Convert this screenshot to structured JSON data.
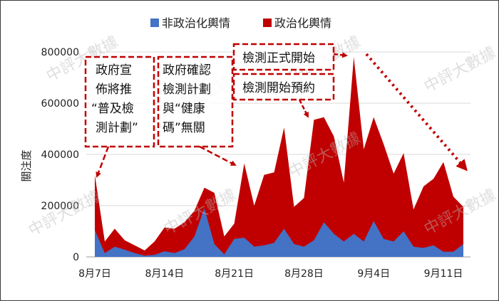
{
  "chart_data": {
    "type": "area",
    "ylabel": "關注度",
    "ylim": [
      0,
      800000
    ],
    "yticks": [
      0,
      200000,
      400000,
      600000,
      800000
    ],
    "ytick_labels": [
      "0",
      "200000",
      "400000",
      "600000",
      "800000"
    ],
    "x_start": "8月7日",
    "xticks": [
      {
        "index": 0,
        "label": "8月7日"
      },
      {
        "index": 7,
        "label": "8月14日"
      },
      {
        "index": 14,
        "label": "8月21日"
      },
      {
        "index": 21,
        "label": "8月28日"
      },
      {
        "index": 28,
        "label": "9月4日"
      },
      {
        "index": 35,
        "label": "9月11日"
      }
    ],
    "grid": true,
    "legend_position": "top",
    "series": [
      {
        "name": "非政治化輿情",
        "color": "#4472c4",
        "values": [
          105000,
          15000,
          40000,
          28000,
          15000,
          5000,
          8000,
          22000,
          15000,
          30000,
          80000,
          190000,
          50000,
          10000,
          70000,
          75000,
          40000,
          45000,
          55000,
          110000,
          50000,
          40000,
          65000,
          135000,
          90000,
          60000,
          90000,
          60000,
          140000,
          70000,
          60000,
          100000,
          40000,
          35000,
          45000,
          20000,
          20000,
          50000
        ]
      },
      {
        "name": "政治化輿情",
        "color": "#c00000",
        "values": [
          320000,
          60000,
          110000,
          65000,
          45000,
          25000,
          60000,
          115000,
          110000,
          135000,
          180000,
          270000,
          250000,
          80000,
          130000,
          365000,
          200000,
          320000,
          330000,
          505000,
          195000,
          230000,
          535000,
          545000,
          470000,
          290000,
          780000,
          420000,
          545000,
          440000,
          325000,
          405000,
          185000,
          275000,
          305000,
          370000,
          235000,
          195000
        ]
      }
    ],
    "annotations": [
      {
        "lines": [
          "政府宣",
          "佈將推",
          "“普及檢",
          "測計劃”"
        ]
      },
      {
        "lines": [
          "政府確認",
          "檢測計劃",
          "與“健康",
          "碼”無關"
        ]
      },
      {
        "lines": [
          "檢測正式開始"
        ]
      },
      {
        "lines": [
          "檢測開始預約"
        ]
      }
    ]
  },
  "watermark": "中評大數據",
  "colors": {
    "political": "#c00000",
    "non_political": "#4472c4",
    "annotation": "#c00000"
  }
}
